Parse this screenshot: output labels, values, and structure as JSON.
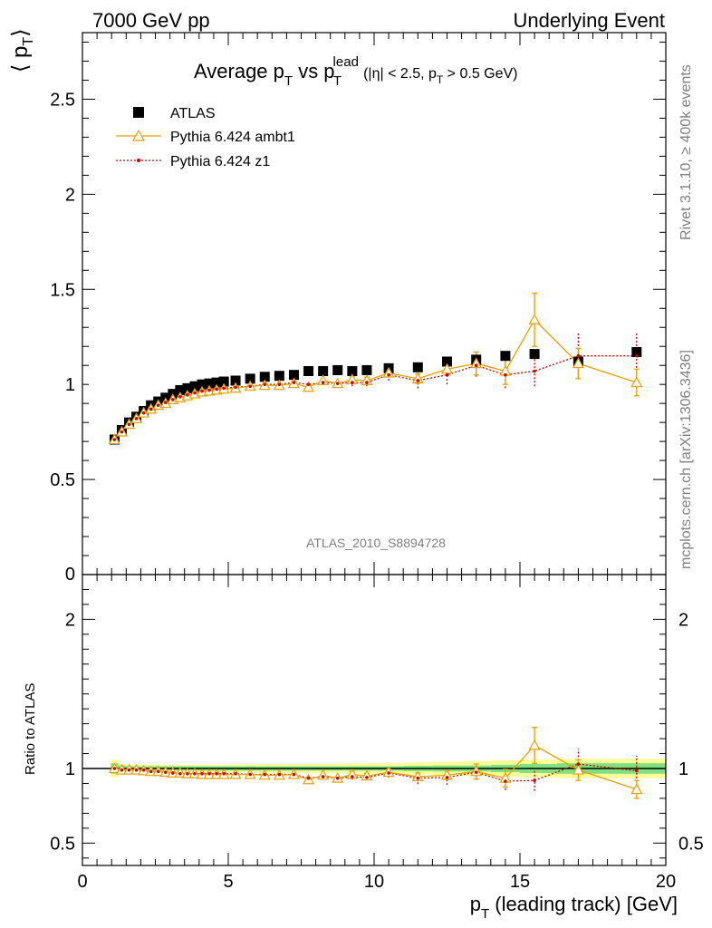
{
  "header": {
    "left": "7000 GeV pp",
    "right": "Underlying Event"
  },
  "title": {
    "main": "Average p",
    "sub_T": "T",
    "vs": " vs p",
    "sup_lead": "lead",
    "sub_T2": "T",
    "cuts_a": "(|η| < 2.5, p",
    "cuts_sub": "T",
    "cuts_b": " > 0.5 GeV)"
  },
  "ylabel": {
    "left": "⟨ p",
    "sub": "T",
    "right": "⟩"
  },
  "ratio_ylabel": "Ratio to ATLAS",
  "xlabel": {
    "a": "p",
    "sub": "T",
    "b": " (leading track) [GeV]"
  },
  "side_text_top": "Rivet 3.1.10, ≥ 400k events",
  "side_text_bottom": "mcplots.cern.ch [arXiv:1306.3436]",
  "analysis_tag": "ATLAS_2010_S8894728",
  "colors": {
    "data": "#000000",
    "ambt1": "#e8a000",
    "z1": "#d20000",
    "band_inner": "#7fe07f",
    "band_outer": "#ffff99"
  },
  "chart_data": {
    "type": "scatter",
    "main_ylim": [
      0,
      2.85
    ],
    "main_yticks": [
      {
        "v": 0.5,
        "label": "0.5"
      },
      {
        "v": 1,
        "label": "1"
      },
      {
        "v": 1.5,
        "label": "1.5"
      },
      {
        "v": 2,
        "label": "2"
      },
      {
        "v": 2.5,
        "label": "2.5"
      }
    ],
    "ratio_ylim": [
      0.35,
      2.3
    ],
    "ratio_yticks": [
      {
        "v": 0.5,
        "label": "0.5"
      },
      {
        "v": 1,
        "label": "1"
      },
      {
        "v": 2,
        "label": "2"
      }
    ],
    "xlim": [
      0,
      20
    ],
    "xticks": [
      {
        "v": 0,
        "label": "0"
      },
      {
        "v": 5,
        "label": "5"
      },
      {
        "v": 10,
        "label": "10"
      },
      {
        "v": 15,
        "label": "15"
      },
      {
        "v": 20,
        "label": "20"
      }
    ],
    "x": [
      1.1,
      1.35,
      1.6,
      1.85,
      2.1,
      2.35,
      2.6,
      2.85,
      3.1,
      3.35,
      3.6,
      3.85,
      4.1,
      4.35,
      4.6,
      4.85,
      5.25,
      5.75,
      6.25,
      6.75,
      7.25,
      7.75,
      8.25,
      8.75,
      9.25,
      9.75,
      10.5,
      11.5,
      12.5,
      13.5,
      14.5,
      15.5,
      17.0,
      19.0
    ],
    "series": [
      {
        "name": "ATLAS",
        "marker": "square",
        "values": [
          0.71,
          0.76,
          0.8,
          0.83,
          0.86,
          0.89,
          0.91,
          0.93,
          0.95,
          0.97,
          0.98,
          0.99,
          1.0,
          1.005,
          1.01,
          1.015,
          1.02,
          1.03,
          1.04,
          1.045,
          1.05,
          1.07,
          1.07,
          1.075,
          1.07,
          1.075,
          1.085,
          1.09,
          1.12,
          1.13,
          1.15,
          1.16,
          1.12,
          1.17
        ]
      },
      {
        "name": "Pythia 6.424 ambt1",
        "marker": "triangle",
        "values": [
          0.71,
          0.75,
          0.79,
          0.82,
          0.85,
          0.87,
          0.89,
          0.9,
          0.92,
          0.93,
          0.94,
          0.95,
          0.96,
          0.965,
          0.97,
          0.975,
          0.98,
          0.99,
          0.995,
          0.995,
          1.005,
          0.985,
          1.02,
          1.005,
          1.025,
          1.02,
          1.06,
          1.03,
          1.08,
          1.11,
          1.07,
          1.34,
          1.11,
          1.01
        ],
        "errors": [
          0.005,
          0.005,
          0.005,
          0.005,
          0.005,
          0.005,
          0.005,
          0.005,
          0.005,
          0.005,
          0.005,
          0.005,
          0.005,
          0.005,
          0.005,
          0.005,
          0.008,
          0.008,
          0.01,
          0.01,
          0.012,
          0.012,
          0.015,
          0.015,
          0.018,
          0.018,
          0.02,
          0.025,
          0.03,
          0.06,
          0.07,
          0.14,
          0.08,
          0.07
        ],
        "ratio": [
          1.0,
          0.99,
          0.99,
          0.99,
          0.985,
          0.98,
          0.98,
          0.975,
          0.97,
          0.97,
          0.965,
          0.965,
          0.96,
          0.96,
          0.96,
          0.96,
          0.96,
          0.96,
          0.955,
          0.955,
          0.96,
          0.925,
          0.955,
          0.935,
          0.96,
          0.95,
          0.975,
          0.945,
          0.955,
          0.98,
          0.935,
          1.155,
          0.99,
          0.86
        ],
        "ratio_errors": [
          0.005,
          0.005,
          0.005,
          0.005,
          0.005,
          0.005,
          0.005,
          0.005,
          0.005,
          0.005,
          0.005,
          0.005,
          0.005,
          0.005,
          0.005,
          0.005,
          0.008,
          0.008,
          0.01,
          0.01,
          0.012,
          0.012,
          0.015,
          0.015,
          0.018,
          0.018,
          0.02,
          0.025,
          0.03,
          0.05,
          0.06,
          0.12,
          0.07,
          0.06
        ]
      },
      {
        "name": "Pythia 6.424 z1",
        "marker": "dot",
        "values": [
          0.71,
          0.75,
          0.79,
          0.82,
          0.85,
          0.87,
          0.89,
          0.905,
          0.92,
          0.935,
          0.945,
          0.955,
          0.965,
          0.97,
          0.975,
          0.98,
          0.985,
          0.99,
          1.0,
          1.0,
          1.01,
          1.0,
          1.01,
          1.005,
          1.01,
          1.01,
          1.05,
          1.02,
          1.05,
          1.1,
          1.05,
          1.07,
          1.15,
          1.15
        ],
        "errors": [
          0.005,
          0.005,
          0.005,
          0.005,
          0.005,
          0.005,
          0.005,
          0.005,
          0.005,
          0.005,
          0.005,
          0.005,
          0.005,
          0.005,
          0.005,
          0.005,
          0.008,
          0.008,
          0.01,
          0.01,
          0.012,
          0.012,
          0.015,
          0.015,
          0.02,
          0.02,
          0.03,
          0.04,
          0.05,
          0.06,
          0.07,
          0.08,
          0.12,
          0.12
        ],
        "ratio": [
          1.0,
          0.99,
          0.99,
          0.99,
          0.99,
          0.98,
          0.98,
          0.975,
          0.97,
          0.965,
          0.965,
          0.965,
          0.965,
          0.965,
          0.965,
          0.965,
          0.965,
          0.96,
          0.96,
          0.96,
          0.96,
          0.935,
          0.945,
          0.935,
          0.945,
          0.94,
          0.97,
          0.935,
          0.94,
          0.975,
          0.915,
          0.92,
          1.03,
          0.985
        ],
        "ratio_errors": [
          0.005,
          0.005,
          0.005,
          0.005,
          0.005,
          0.005,
          0.005,
          0.005,
          0.005,
          0.005,
          0.005,
          0.005,
          0.005,
          0.005,
          0.005,
          0.005,
          0.008,
          0.008,
          0.01,
          0.01,
          0.012,
          0.012,
          0.015,
          0.015,
          0.02,
          0.02,
          0.03,
          0.04,
          0.05,
          0.05,
          0.06,
          0.07,
          0.1,
          0.1
        ]
      }
    ],
    "band": {
      "inner": [
        0.035,
        0.02,
        0.015,
        0.015,
        0.015,
        0.015,
        0.015,
        0.015,
        0.015,
        0.015,
        0.015,
        0.015,
        0.015,
        0.015,
        0.015,
        0.015,
        0.015,
        0.015,
        0.015,
        0.015,
        0.015,
        0.015,
        0.015,
        0.015,
        0.015,
        0.015,
        0.015,
        0.018,
        0.02,
        0.02,
        0.025,
        0.03,
        0.035,
        0.035
      ],
      "outer": [
        0.06,
        0.03,
        0.025,
        0.025,
        0.025,
        0.025,
        0.025,
        0.025,
        0.025,
        0.025,
        0.025,
        0.025,
        0.025,
        0.025,
        0.025,
        0.025,
        0.028,
        0.028,
        0.03,
        0.03,
        0.03,
        0.03,
        0.032,
        0.032,
        0.035,
        0.035,
        0.035,
        0.04,
        0.045,
        0.05,
        0.055,
        0.06,
        0.065,
        0.065
      ]
    },
    "legend_position": "top-left",
    "grid": false
  }
}
